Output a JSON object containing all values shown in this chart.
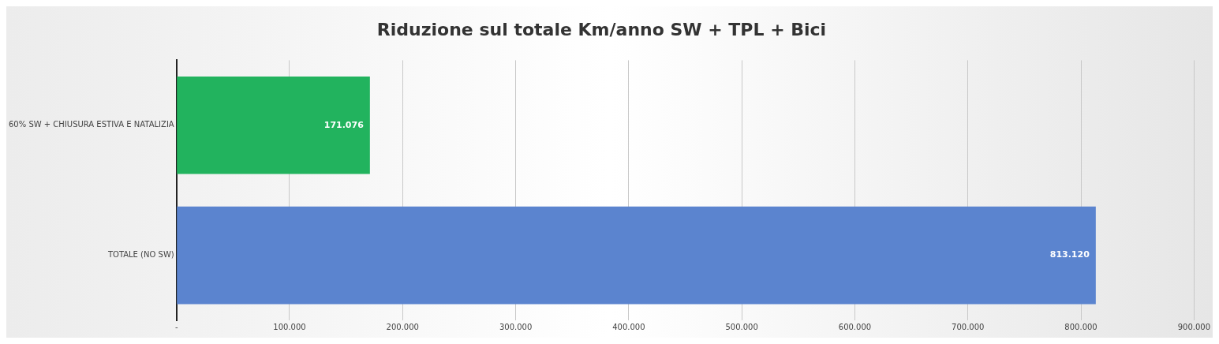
{
  "chart_data": {
    "type": "bar",
    "orientation": "horizontal",
    "title": "Riduzione sul totale Km/anno SW + TPL + Bici",
    "categories": [
      "60% SW + CHIUSURA ESTIVA E NATALIZIA",
      "TOTALE (NO SW)"
    ],
    "values": [
      171076,
      813120
    ],
    "colors": [
      "#22b35e",
      "#5b84cf"
    ],
    "value_labels": [
      "171.076",
      "813.120"
    ],
    "xlim": [
      0,
      900000
    ],
    "xticks": [
      {
        "value": 0,
        "label": "-"
      },
      {
        "value": 100000,
        "label": "100.000"
      },
      {
        "value": 200000,
        "label": "200.000"
      },
      {
        "value": 300000,
        "label": "300.000"
      },
      {
        "value": 400000,
        "label": "400.000"
      },
      {
        "value": 500000,
        "label": "500.000"
      },
      {
        "value": 600000,
        "label": "600.000"
      },
      {
        "value": 700000,
        "label": "700.000"
      },
      {
        "value": 800000,
        "label": "800.000"
      },
      {
        "value": 900000,
        "label": "900.000"
      }
    ],
    "grid": "x",
    "legend": false
  }
}
